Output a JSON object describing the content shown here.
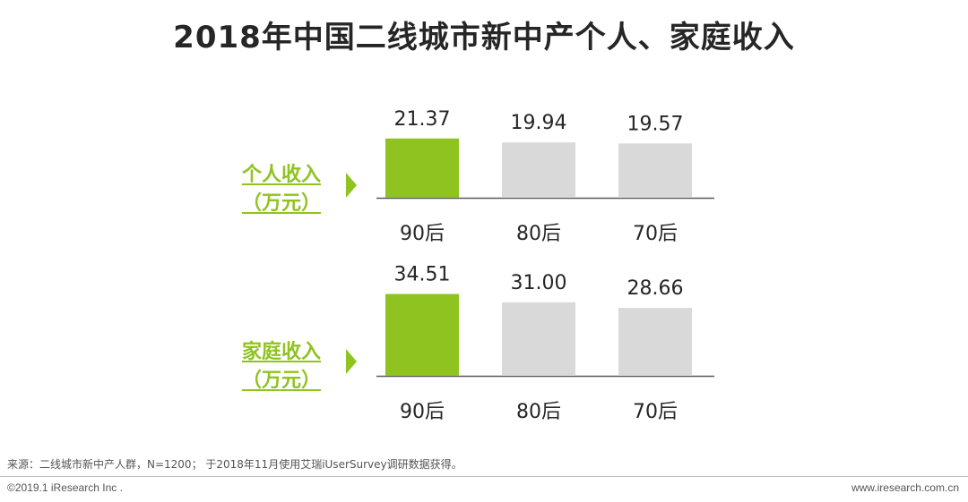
{
  "title": "2018年中国二线城市新中产个人、家庭收入",
  "colors": {
    "highlight": "#8fc31f",
    "normal": "#d9d9d9",
    "axis": "#595959",
    "text": "#262626"
  },
  "chart_data": [
    {
      "type": "bar",
      "series_label_line1": "个人收入",
      "series_label_line2": "（万元）",
      "categories": [
        "90后",
        "80后",
        "70后"
      ],
      "values": [
        21.37,
        19.94,
        19.57
      ],
      "value_labels": [
        "21.37",
        "19.94",
        "19.57"
      ],
      "highlight_index": 0
    },
    {
      "type": "bar",
      "series_label_line1": "家庭收入",
      "series_label_line2": "（万元）",
      "categories": [
        "90后",
        "80后",
        "70后"
      ],
      "values": [
        34.51,
        31.0,
        28.66
      ],
      "value_labels": [
        "34.51",
        "31.00",
        "28.66"
      ],
      "highlight_index": 0
    }
  ],
  "source": "来源：二线城市新中产人群，N=1200； 于2018年11月使用艾瑞iUserSurvey调研数据获得。",
  "copyright": "©2019.1 iResearch Inc .",
  "website": "www.iresearch.com.cn"
}
